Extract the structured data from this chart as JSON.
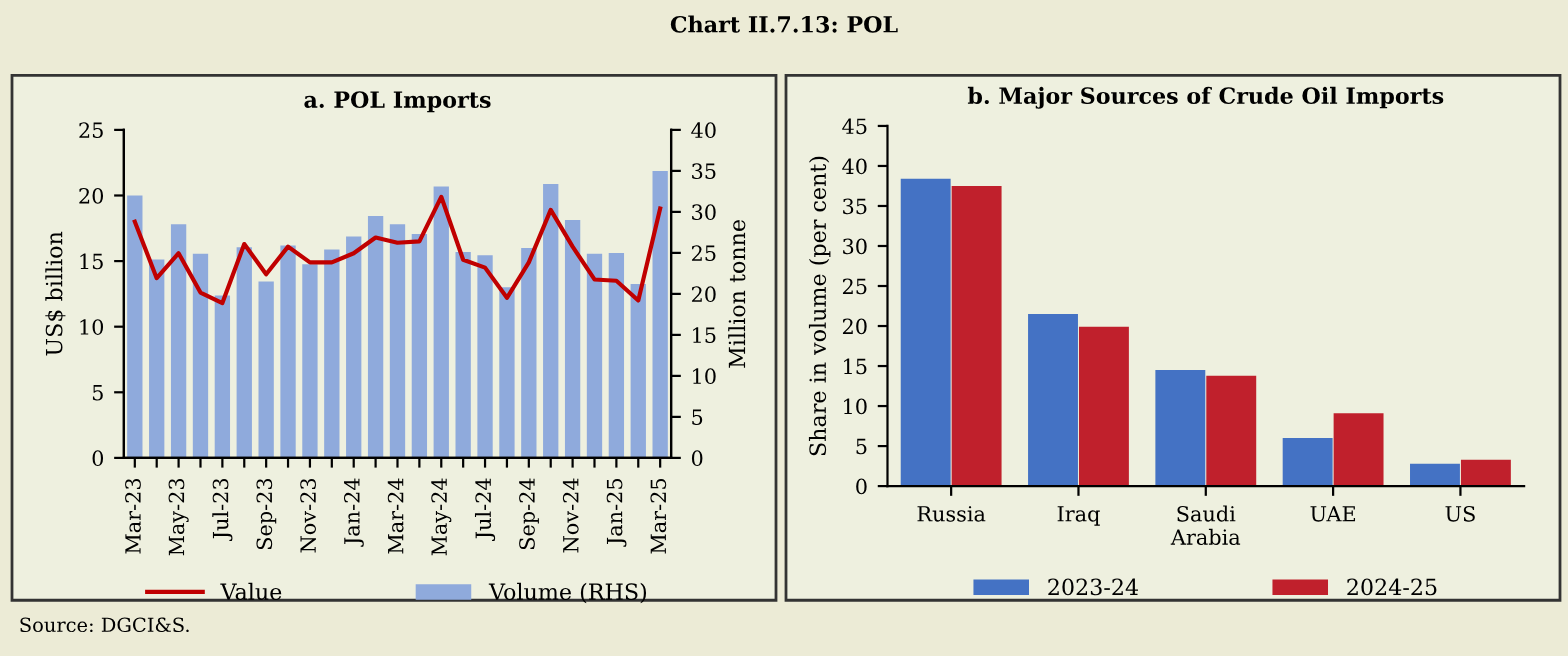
{
  "chart_data": [
    {
      "type": "bar",
      "title": "a. POL Imports",
      "ylabel": "US$ billion",
      "y2label": "Million tonne",
      "annotations": [
        "Chart II.7.13: POL",
        "Source: DGCI&S."
      ],
      "categories": [
        "Mar-23",
        null,
        "May-23",
        null,
        "Jul-23",
        null,
        "Sep-23",
        null,
        "Nov-23",
        null,
        "Jan-24",
        null,
        "Mar-24",
        null,
        "May-24",
        null,
        "Jul-24",
        null,
        "Sep-24",
        null,
        "Nov-24",
        null,
        "Jan-25",
        null,
        "Mar-25"
      ],
      "series": [
        {
          "name": "Value",
          "type": "line",
          "color": "#c00000",
          "values": [
            18.0,
            13.7,
            15.6,
            12.6,
            11.8,
            16.3,
            14.0,
            16.1,
            14.9,
            14.9,
            15.6,
            16.8,
            16.4,
            16.5,
            19.9,
            15.1,
            14.5,
            12.2,
            14.9,
            18.9,
            16.1,
            13.6,
            13.5,
            12.0,
            19.0
          ]
        },
        {
          "name": "Volume (RHS)",
          "type": "bar",
          "axis": "y2",
          "color": "#8faadc",
          "values": [
            32.0,
            24.2,
            28.5,
            24.9,
            19.8,
            25.7,
            21.5,
            25.9,
            23.6,
            25.4,
            27.0,
            29.5,
            28.5,
            27.3,
            33.1,
            25.1,
            24.7,
            20.8,
            25.6,
            33.4,
            29.0,
            24.9,
            25.0,
            21.2,
            35.0
          ]
        }
      ],
      "ylim": [
        0,
        25
      ],
      "yticks": [
        0,
        5,
        10,
        15,
        20,
        25
      ],
      "y2lim": [
        0,
        40
      ],
      "y2ticks": [
        0,
        5,
        10,
        15,
        20,
        25,
        30,
        35,
        40
      ],
      "legend": "bottom"
    },
    {
      "type": "bar",
      "title": "b. Major Sources of Crude Oil Imports",
      "ylabel": "Share in volume (per cent)",
      "categories": [
        "Russia",
        "Iraq",
        "Saudi\nArabia",
        "UAE",
        "US"
      ],
      "series": [
        {
          "name": "2023-24",
          "color": "#4472c4",
          "values": [
            38.4,
            21.5,
            14.5,
            6.0,
            2.8
          ]
        },
        {
          "name": "2024-25",
          "color": "#c0202c",
          "values": [
            37.5,
            19.9,
            13.8,
            9.1,
            3.3
          ]
        }
      ],
      "ylim": [
        0,
        45
      ],
      "yticks": [
        0,
        5,
        10,
        15,
        20,
        25,
        30,
        35,
        40,
        45
      ],
      "legend": "bottom"
    }
  ]
}
